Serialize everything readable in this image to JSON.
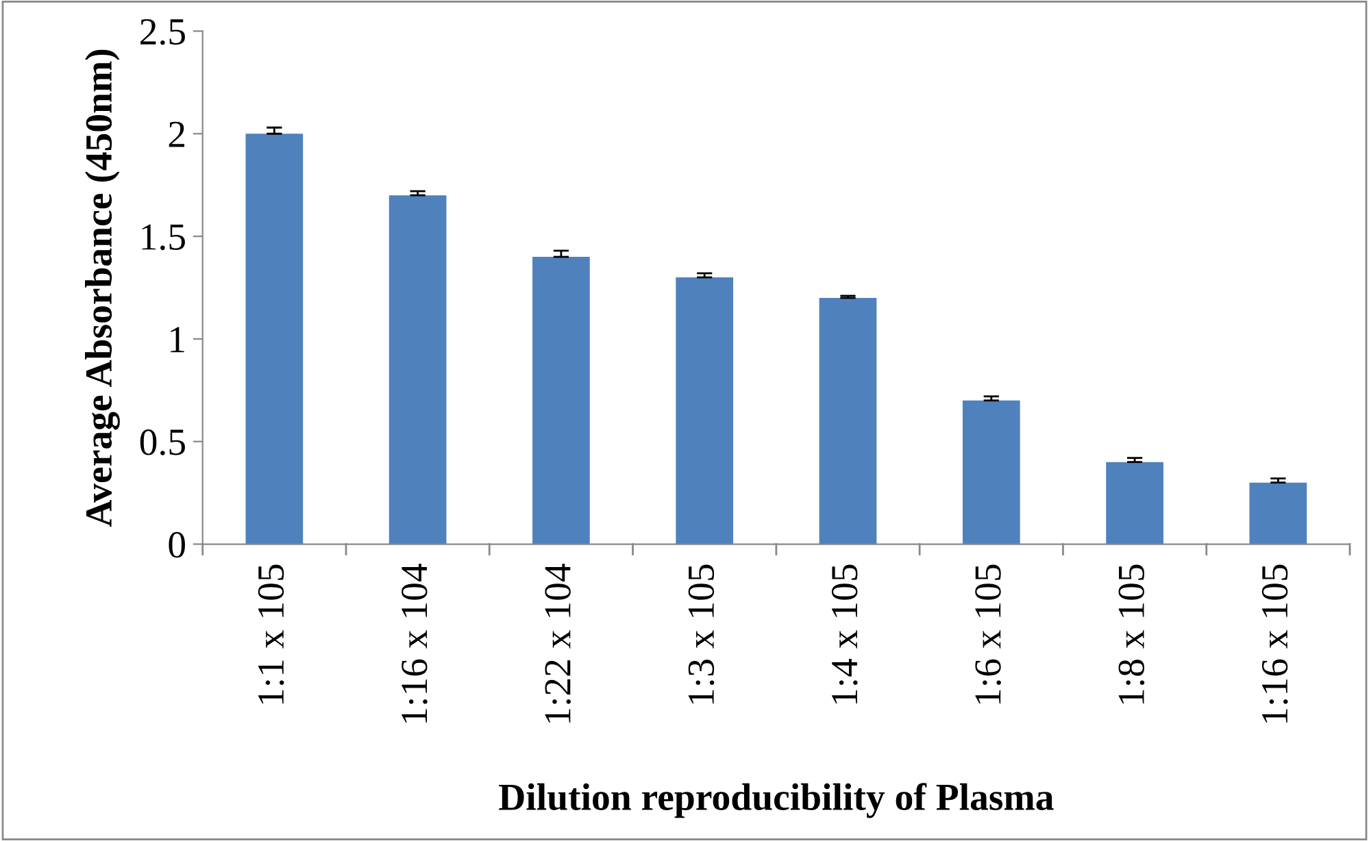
{
  "chart_data": {
    "type": "bar",
    "xlabel": "Dilution reproducibility of Plasma",
    "ylabel": "Average Absorbance (450nm)",
    "categories": [
      "1:1 x 105",
      "1:16 x 104",
      "1:22 x 104",
      "1:3 x 105",
      "1:4 x 105",
      "1:6 x 105",
      "1:8 x 105",
      "1:16 x 105"
    ],
    "values": [
      2.0,
      1.7,
      1.4,
      1.3,
      1.2,
      0.7,
      0.4,
      0.3
    ],
    "errors": [
      [
        2.0,
        2.03
      ],
      [
        1.7,
        1.72
      ],
      [
        1.4,
        1.43
      ],
      [
        1.3,
        1.32
      ],
      [
        1.2,
        1.21
      ],
      [
        0.7,
        0.72
      ],
      [
        0.4,
        0.42
      ],
      [
        0.3,
        0.32
      ]
    ],
    "color": "#4f81bd",
    "ylim": [
      0,
      2.5
    ],
    "yticks": [
      0,
      0.5,
      1,
      1.5,
      2,
      2.5
    ],
    "grid": false,
    "legend": false
  }
}
